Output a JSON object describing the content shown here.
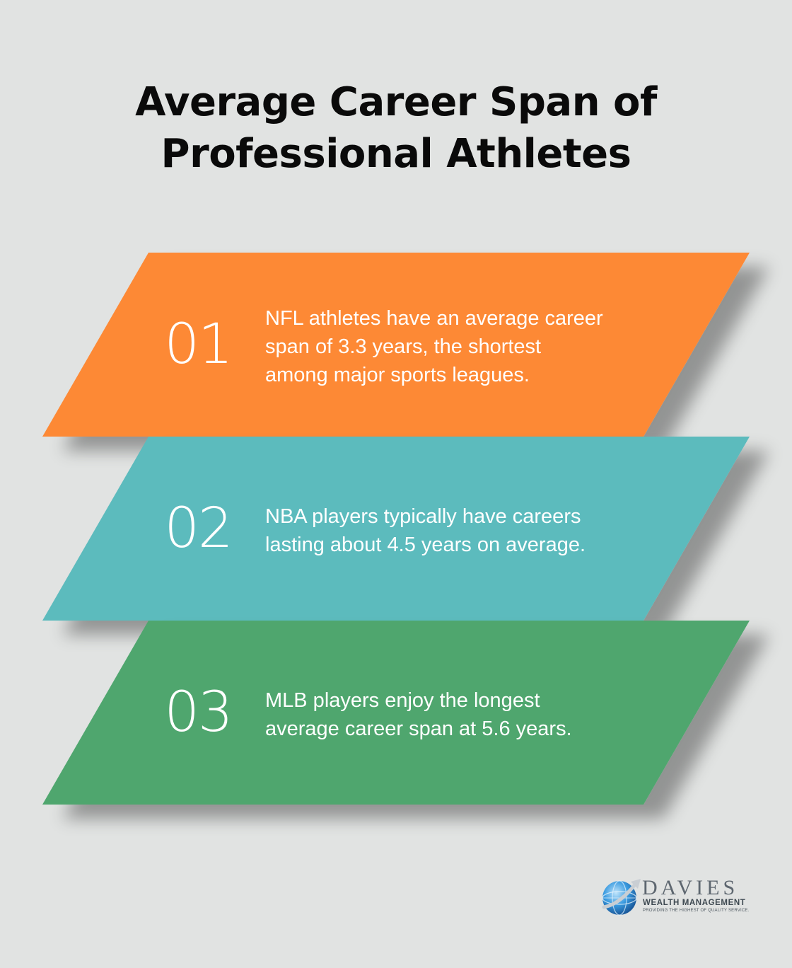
{
  "title": {
    "line1": "Average Career Span of",
    "line2": "Professional Athletes"
  },
  "items": [
    {
      "number": "01",
      "lines": [
        "NFL athletes have an average career",
        "span of 3.3 years, the shortest",
        "among major sports leagues."
      ],
      "color": "#fd8935"
    },
    {
      "number": "02",
      "lines": [
        "NBA players typically have careers",
        "lasting about 4.5 years on average."
      ],
      "color": "#5bbbbd"
    },
    {
      "number": "03",
      "lines": [
        "MLB players enjoy the longest",
        "average career span at 5.6 years."
      ],
      "color": "#4fa66e"
    }
  ],
  "logo": {
    "brand": "DAVIES",
    "subtitle": "WEALTH MANAGEMENT",
    "tagline": "PROVIDING THE HIGHEST OF QUALITY SERVICE.",
    "icon": "globe-arrow-icon",
    "brand_color": "#5e6770",
    "globe_color": "#2f8fd6"
  },
  "colors": {
    "background": "#e1e3e2",
    "title": "#0a0a0a",
    "text": "#ffffff"
  }
}
